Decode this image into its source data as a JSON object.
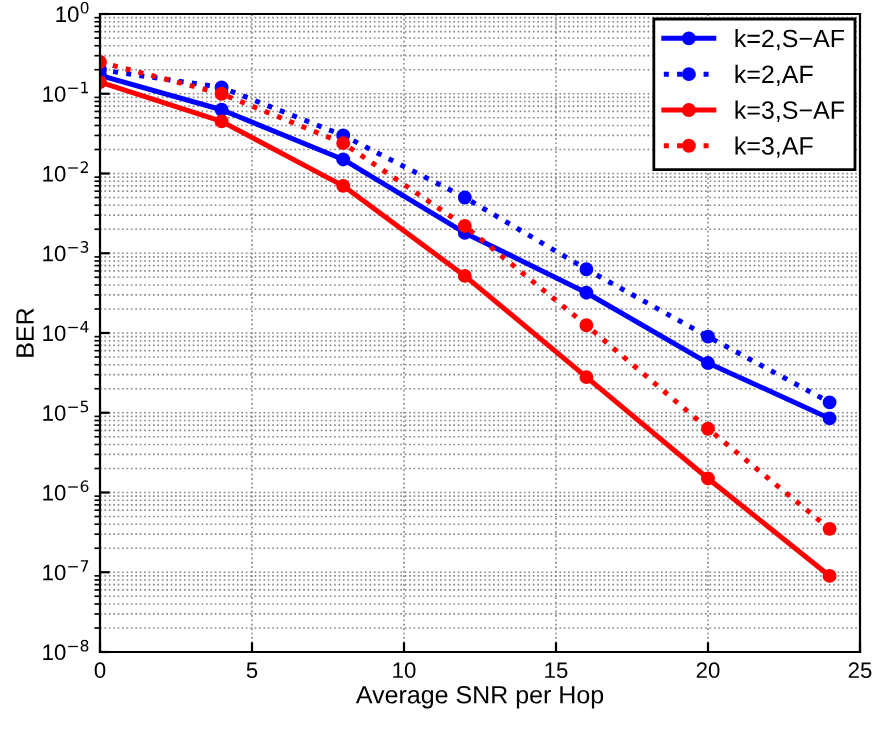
{
  "chart_data": {
    "type": "line",
    "xlabel": "Average SNR per Hop",
    "ylabel": "BER",
    "log": "y",
    "x": [
      0,
      4,
      8,
      12,
      16,
      20,
      24
    ],
    "xlim": [
      0,
      25
    ],
    "xticks": [
      0,
      5,
      10,
      15,
      20,
      25
    ],
    "ylim": [
      1e-08,
      1
    ],
    "yticks": [
      {
        "value": 1e-08,
        "label": "10$^{−8}$"
      },
      {
        "value": 1e-07,
        "label": "10$^{−7}$"
      },
      {
        "value": 1e-06,
        "label": "10$^{−6}$"
      },
      {
        "value": 1e-05,
        "label": "10$^{−5}$"
      },
      {
        "value": 0.0001,
        "label": "10$^{−4}$"
      },
      {
        "value": 0.001,
        "label": "10$^{−3}$"
      },
      {
        "value": 0.01,
        "label": "10$^{−2}$"
      },
      {
        "value": 0.1,
        "label": "10$^{−1}$"
      },
      {
        "value": 1,
        "label": "10$^{0}$"
      }
    ],
    "grid": true,
    "legend": "top right",
    "marker": "circle",
    "series": [
      {
        "name": "k=2,S−AF",
        "color": "#0000ff",
        "line_style": "solid",
        "values": [
          0.17,
          0.063,
          0.015,
          0.0018,
          0.00032,
          4.2e-05,
          8.5e-06
        ]
      },
      {
        "name": "k=2,AF",
        "color": "#0000ff",
        "line_style": "dotted",
        "values": [
          0.2,
          0.12,
          0.03,
          0.005,
          0.00063,
          9e-05,
          1.35e-05
        ]
      },
      {
        "name": "k=3,S−AF",
        "color": "#ff0000",
        "line_style": "solid",
        "values": [
          0.14,
          0.045,
          0.007,
          0.00052,
          2.8e-05,
          1.5e-06,
          9e-08
        ]
      },
      {
        "name": "k=3,AF",
        "color": "#ff0000",
        "line_style": "dotted",
        "values": [
          0.25,
          0.1,
          0.024,
          0.0022,
          0.000125,
          6.3e-06,
          3.5e-07
        ]
      }
    ]
  }
}
